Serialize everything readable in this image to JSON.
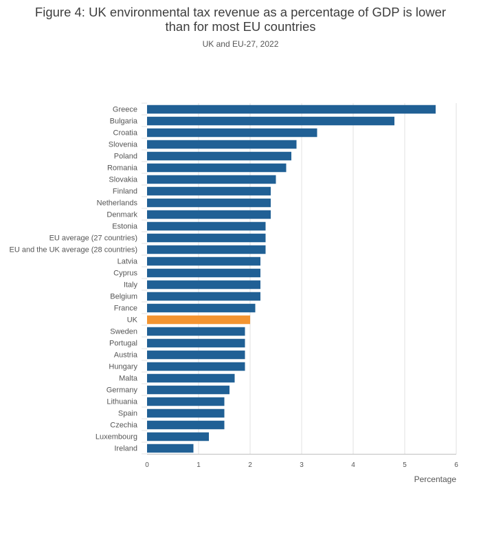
{
  "chart_data": {
    "type": "bar",
    "orientation": "horizontal",
    "title_line1": "Figure 4: UK environmental tax revenue as a percentage of GDP is lower",
    "title_line2": "than for most EU countries",
    "subtitle": "UK and EU-27, 2022",
    "xlabel": "Percentage",
    "ylabel": "",
    "xlim": [
      0,
      6
    ],
    "xticks": [
      0,
      1,
      2,
      3,
      4,
      5,
      6
    ],
    "grid": true,
    "categories": [
      "Greece",
      "Bulgaria",
      "Croatia",
      "Slovenia",
      "Poland",
      "Romania",
      "Slovakia",
      "Finland",
      "Netherlands",
      "Denmark",
      "Estonia",
      "EU average (27 countries)",
      "EU and the UK average (28 countries)",
      "Latvia",
      "Cyprus",
      "Italy",
      "Belgium",
      "France",
      "UK",
      "Sweden",
      "Portugal",
      "Austria",
      "Hungary",
      "Malta",
      "Germany",
      "Lithuania",
      "Spain",
      "Czechia",
      "Luxembourg",
      "Ireland"
    ],
    "values": [
      5.6,
      4.8,
      3.3,
      2.9,
      2.8,
      2.7,
      2.5,
      2.4,
      2.4,
      2.4,
      2.3,
      2.3,
      2.3,
      2.2,
      2.2,
      2.2,
      2.2,
      2.1,
      2.0,
      1.9,
      1.9,
      1.9,
      1.9,
      1.7,
      1.6,
      1.5,
      1.5,
      1.5,
      1.2,
      0.9
    ],
    "highlight_category": "UK",
    "colors": {
      "bar": "#206095",
      "highlight": "#f39431",
      "grid": "#e0e0e0",
      "axis": "#bebebe"
    }
  }
}
